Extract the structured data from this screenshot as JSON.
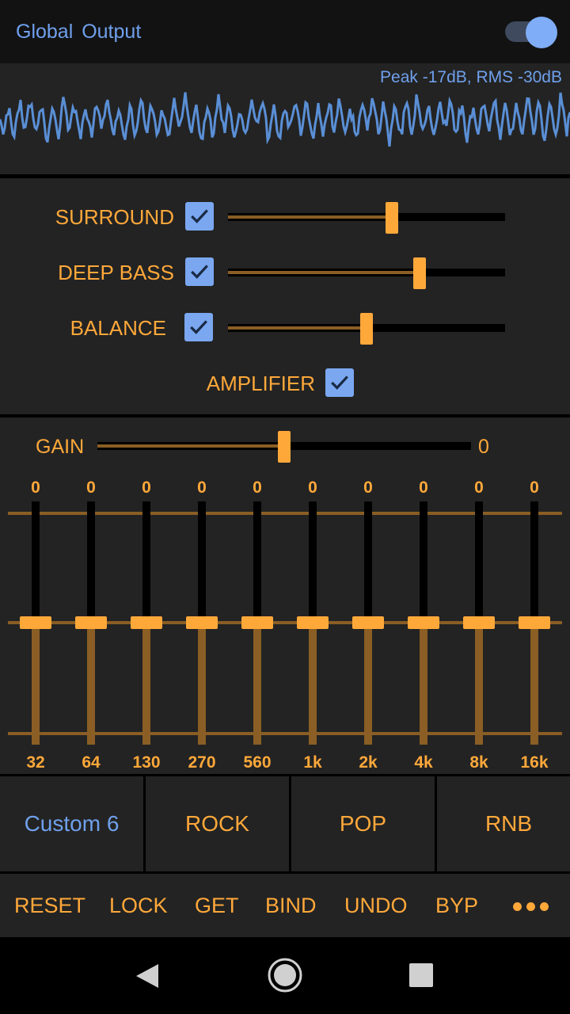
{
  "header": {
    "title": "Global Output",
    "toggle_on": true
  },
  "meter": {
    "readout": "Peak -17dB, RMS -30dB"
  },
  "effects": [
    {
      "label": "SURROUND",
      "checked": true,
      "value": 0.59
    },
    {
      "label": "DEEP BASS",
      "checked": true,
      "value": 0.69
    },
    {
      "label": "BALANCE",
      "checked": true,
      "value": 0.5
    }
  ],
  "amplifier": {
    "label": "AMPLIFIER",
    "checked": true
  },
  "gain": {
    "label": "GAIN",
    "value": "0",
    "position": 0.5
  },
  "eq": {
    "bands": [
      {
        "freq": "32",
        "value": "0"
      },
      {
        "freq": "64",
        "value": "0"
      },
      {
        "freq": "130",
        "value": "0"
      },
      {
        "freq": "270",
        "value": "0"
      },
      {
        "freq": "560",
        "value": "0"
      },
      {
        "freq": "1k",
        "value": "0"
      },
      {
        "freq": "2k",
        "value": "0"
      },
      {
        "freq": "4k",
        "value": "0"
      },
      {
        "freq": "8k",
        "value": "0"
      },
      {
        "freq": "16k",
        "value": "0"
      }
    ]
  },
  "presets": [
    {
      "label": "Custom 6",
      "active": true
    },
    {
      "label": "ROCK"
    },
    {
      "label": "POP"
    },
    {
      "label": "RNB"
    }
  ],
  "actions": [
    "RESET",
    "LOCK",
    "GET",
    "BIND",
    "UNDO",
    "BYP"
  ],
  "more_icon": "more-horizontal-icon",
  "colors": {
    "accent": "#ffa83a",
    "blue": "#6fa0ec",
    "background": "#232323"
  }
}
